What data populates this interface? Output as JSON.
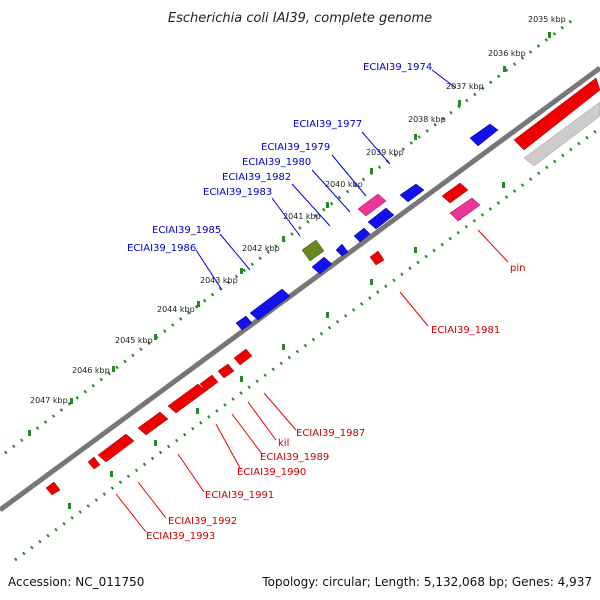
{
  "title": "Escherichia coli IAI39, complete genome",
  "footer": {
    "accession": "Accession: NC_011750",
    "summary": "Topology: circular; Length: 5,132,068 bp; Genes: 4,937"
  },
  "colors": {
    "forward_gene": "#0000ee",
    "reverse_gene": "#ee0000",
    "pseudo_gene": "#ee3399",
    "rna_gene": "#668822",
    "backbone": "#777777",
    "scale_dots": "#228B22"
  },
  "scale_ticks": [
    "2035 kbp",
    "2036 kbp",
    "2037 kbp",
    "2038 kbp",
    "2039 kbp",
    "2040 kbp",
    "2041 kbp",
    "2042 kbp",
    "2043 kbp",
    "2044 kbp",
    "2045 kbp",
    "2046 kbp",
    "2047 kbp"
  ],
  "gene_labels_forward": [
    "ECIAI39_1974",
    "ECIAI39_1977",
    "ECIAI39_1979",
    "ECIAI39_1980",
    "ECIAI39_1982",
    "ECIAI39_1983",
    "ECIAI39_1985",
    "ECIAI39_1986"
  ],
  "gene_labels_reverse": [
    "pin",
    "ECIAI39_1981",
    "ECIAI39_1987",
    "kil",
    "ECIAI39_1989",
    "ECIAI39_1990",
    "ECIAI39_1991",
    "ECIAI39_1992",
    "ECIAI39_1993"
  ]
}
